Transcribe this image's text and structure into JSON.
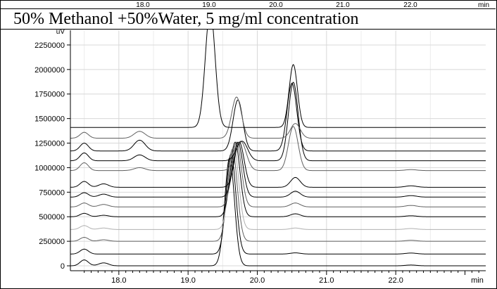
{
  "header_strip": {
    "tick_labels": [
      "18.0",
      "19.0",
      "20.0",
      "21.0",
      "22.0",
      "min"
    ]
  },
  "title": "50% Methanol +50%Water, 5 mg/ml concentration",
  "chart_data": {
    "type": "line",
    "title": "50% Methanol +50%Water, 5 mg/ml concentration",
    "xlabel": "min",
    "ylabel": "uV",
    "xlim": [
      17.3,
      23.3
    ],
    "ylim": [
      -50000,
      2400000
    ],
    "x_ticks": [
      18.0,
      19.0,
      20.0,
      21.0,
      22.0
    ],
    "x_tick_labels": [
      "18.0",
      "19.0",
      "20.0",
      "21.0",
      "22.0"
    ],
    "y_ticks": [
      0,
      250000,
      500000,
      750000,
      1000000,
      1250000,
      1500000,
      1750000,
      2000000,
      2250000
    ],
    "y_tick_labels": [
      "0",
      "250000",
      "500000",
      "750000",
      "1000000",
      "1250000",
      "1500000",
      "1750000",
      "2000000",
      "2250000"
    ],
    "grid": true,
    "line_colors": [
      "#000000",
      "#606060",
      "#b0b0b0"
    ],
    "series": [
      {
        "baseline": 0,
        "peaks": [
          [
            17.5,
            60000,
            0.06
          ],
          [
            17.78,
            30000,
            0.07
          ],
          [
            19.6,
            1100000,
            0.07
          ],
          [
            22.22,
            8000,
            0.08
          ]
        ]
      },
      {
        "baseline": 120000,
        "peaks": [
          [
            17.5,
            50000,
            0.06
          ],
          [
            19.62,
            1020000,
            0.07
          ],
          [
            20.55,
            12000,
            0.07
          ],
          [
            22.22,
            10000,
            0.08
          ]
        ]
      },
      {
        "baseline": 250000,
        "peaks": [
          [
            17.5,
            40000,
            0.06
          ],
          [
            17.78,
            15000,
            0.07
          ],
          [
            19.64,
            940000,
            0.07
          ],
          [
            22.22,
            10000,
            0.08
          ]
        ]
      },
      {
        "baseline": 370000,
        "peaks": [
          [
            17.5,
            40000,
            0.06
          ],
          [
            17.78,
            15000,
            0.07
          ],
          [
            19.66,
            850000,
            0.07
          ],
          [
            20.55,
            15000,
            0.07
          ],
          [
            22.22,
            10000,
            0.08
          ]
        ]
      },
      {
        "baseline": 500000,
        "peaks": [
          [
            17.5,
            35000,
            0.06
          ],
          [
            17.78,
            15000,
            0.07
          ],
          [
            19.68,
            760000,
            0.07
          ],
          [
            20.55,
            30000,
            0.07
          ],
          [
            22.22,
            10000,
            0.08
          ]
        ]
      },
      {
        "baseline": 600000,
        "peaks": [
          [
            17.5,
            40000,
            0.06
          ],
          [
            17.78,
            25000,
            0.07
          ],
          [
            19.7,
            660000,
            0.07
          ],
          [
            20.55,
            40000,
            0.07
          ],
          [
            22.22,
            15000,
            0.08
          ]
        ]
      },
      {
        "baseline": 700000,
        "peaks": [
          [
            17.5,
            45000,
            0.06
          ],
          [
            17.78,
            30000,
            0.07
          ],
          [
            19.72,
            560000,
            0.07
          ],
          [
            20.55,
            60000,
            0.07
          ],
          [
            22.22,
            15000,
            0.08
          ]
        ]
      },
      {
        "baseline": 800000,
        "peaks": [
          [
            17.5,
            60000,
            0.06
          ],
          [
            17.78,
            35000,
            0.07
          ],
          [
            19.74,
            460000,
            0.07
          ],
          [
            20.55,
            100000,
            0.07
          ],
          [
            22.22,
            15000,
            0.08
          ]
        ]
      },
      {
        "baseline": 970000,
        "peaks": [
          [
            17.5,
            80000,
            0.06
          ],
          [
            18.3,
            30000,
            0.08
          ],
          [
            19.76,
            300000,
            0.08
          ],
          [
            20.52,
            450000,
            0.07
          ],
          [
            22.22,
            10000,
            0.08
          ]
        ]
      },
      {
        "baseline": 1070000,
        "peaks": [
          [
            17.5,
            80000,
            0.06
          ],
          [
            18.3,
            60000,
            0.08
          ],
          [
            19.78,
            200000,
            0.08
          ],
          [
            20.52,
            800000,
            0.07
          ]
        ]
      },
      {
        "baseline": 1170000,
        "peaks": [
          [
            17.5,
            80000,
            0.06
          ],
          [
            18.3,
            110000,
            0.08
          ],
          [
            19.72,
            520000,
            0.07
          ],
          [
            20.5,
            690000,
            0.07
          ]
        ]
      },
      {
        "baseline": 1300000,
        "peaks": [
          [
            17.5,
            60000,
            0.06
          ],
          [
            18.3,
            70000,
            0.08
          ],
          [
            19.7,
            420000,
            0.07
          ],
          [
            20.55,
            150000,
            0.07
          ]
        ]
      },
      {
        "baseline": 1410000,
        "peaks": [
          [
            19.32,
            1200000,
            0.07
          ],
          [
            20.52,
            640000,
            0.06
          ]
        ]
      }
    ]
  }
}
